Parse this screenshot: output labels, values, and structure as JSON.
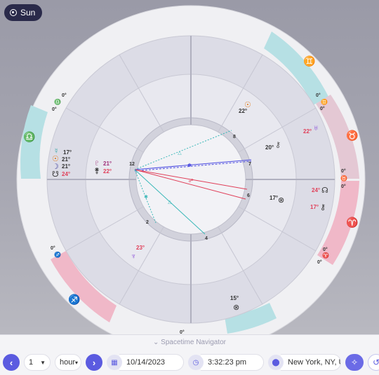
{
  "sun_button": {
    "label": "Sun"
  },
  "houses": [
    "1",
    "2",
    "3",
    "4",
    "5",
    "6",
    "7",
    "8",
    "9",
    "10",
    "11",
    "12"
  ],
  "signs": [
    {
      "name": "gemini",
      "glyph": "♊",
      "color": "#b6e0e4"
    },
    {
      "name": "taurus",
      "glyph": "♉",
      "color": "#e4c8d4"
    },
    {
      "name": "aries",
      "glyph": "♈",
      "color": "#f0b8c8"
    },
    {
      "name": "libra",
      "glyph": "♎",
      "color": "#b6e0e4"
    },
    {
      "name": "sagittarius",
      "glyph": "♐",
      "color": "#f0b8c8"
    }
  ],
  "planets": [
    {
      "glyph": "☉",
      "deg": "22°",
      "color": "#e07b1a"
    },
    {
      "glyph": "♅",
      "deg": "22°",
      "color": "#8a4fd8"
    },
    {
      "glyph": "⚷",
      "deg": "20°",
      "color": "#555"
    },
    {
      "glyph": "☊",
      "deg": "24°",
      "color": "#333"
    },
    {
      "glyph": "⚷",
      "deg": "17°",
      "color": "#333"
    },
    {
      "glyph": "⊗",
      "deg": "17°",
      "color": "#333"
    },
    {
      "glyph": "☿",
      "deg": "17°",
      "color": "#2aa3a3"
    },
    {
      "glyph": "☉",
      "deg": "21°",
      "color": "#e07b1a"
    },
    {
      "glyph": "☽",
      "deg": "21°",
      "color": "#3a3a9a"
    },
    {
      "glyph": "☋",
      "deg": "24°",
      "color": "#333"
    },
    {
      "glyph": "♇",
      "deg": "21°",
      "color": "#a0307a"
    },
    {
      "glyph": "⚵",
      "deg": "22°",
      "color": "#333"
    },
    {
      "glyph": "♆",
      "deg": "23°",
      "color": "#8a4fd8"
    },
    {
      "glyph": "⊗",
      "deg": "15°",
      "color": "#333"
    }
  ],
  "cusp_labels": [
    "0°",
    "0°",
    "0°",
    "0°",
    "0°",
    "0°",
    "0°",
    "0°",
    "0°",
    "0°"
  ],
  "navigator": {
    "title": "Spacetime Navigator",
    "step_value": "1",
    "step_unit": "hour",
    "date": "10/14/2023",
    "time": "3:32:23 pm",
    "location": "New York, NY, U"
  }
}
